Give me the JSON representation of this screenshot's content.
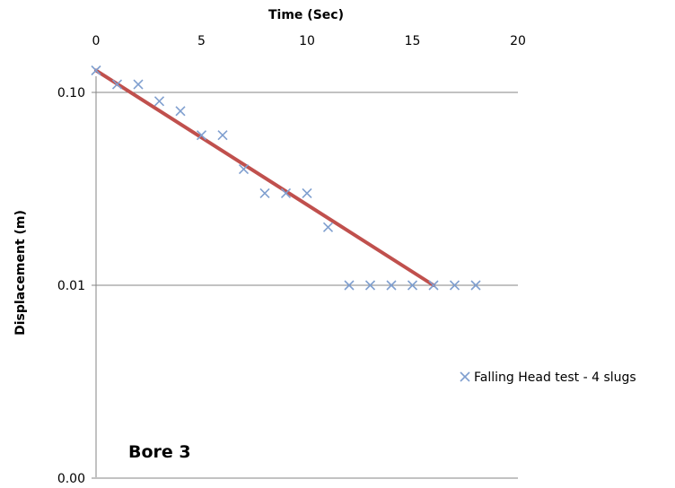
{
  "chart_data": {
    "type": "scatter",
    "title": "",
    "xlabel": "Time (Sec)",
    "ylabel": "Displacement (m)",
    "xlim": [
      0,
      20
    ],
    "ylim": [
      0.001,
      0.2
    ],
    "y_scale": "log",
    "x_ticks": [
      {
        "value": 0,
        "label": "0"
      },
      {
        "value": 5,
        "label": "5"
      },
      {
        "value": 10,
        "label": "10"
      },
      {
        "value": 15,
        "label": "15"
      },
      {
        "value": 20,
        "label": "20"
      }
    ],
    "y_ticks": [
      {
        "value": 0.1,
        "label": "0.10"
      },
      {
        "value": 0.01,
        "label": "0.01"
      },
      {
        "value": 0.001,
        "label": "0.00"
      }
    ],
    "x_axis_position": "top",
    "grid": "horizontal",
    "legend_position": "right",
    "series": [
      {
        "name": "Falling Head test - 4 slugs",
        "marker": "x",
        "color": "#7f9fcf",
        "x": [
          0,
          1,
          2,
          3,
          4,
          5,
          6,
          7,
          8,
          9,
          10,
          11,
          12,
          13,
          14,
          15,
          16,
          17,
          18
        ],
        "y": [
          0.13,
          0.11,
          0.11,
          0.09,
          0.08,
          0.06,
          0.06,
          0.04,
          0.03,
          0.03,
          0.03,
          0.02,
          0.01,
          0.01,
          0.01,
          0.01,
          0.01,
          0.01,
          0.01
        ]
      }
    ],
    "trendline": {
      "color": "#c0504d",
      "x": [
        0,
        16
      ],
      "y": [
        0.13,
        0.01
      ]
    },
    "annotations": [
      {
        "text": "Bore 3"
      }
    ]
  }
}
